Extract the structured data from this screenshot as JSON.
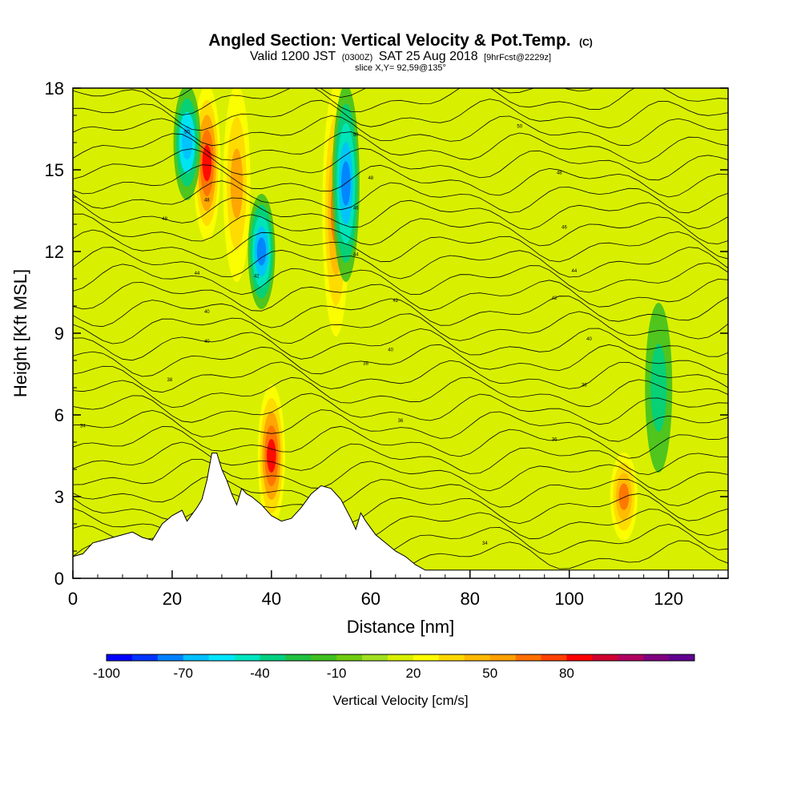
{
  "header": {
    "title_main": "Angled Section: Vertical Velocity & Pot.Temp.",
    "title_mark": "(C)",
    "valid_prefix": "Valid 1200 JST",
    "valid_utc": "(0300Z)",
    "valid_date": "SAT 25 Aug 2018",
    "valid_fcst": "[9hrFcst@2229z]",
    "slice": "slice X,Y= 92,59@135°"
  },
  "chart_data": {
    "type": "heatmap",
    "xlabel": "Distance [nm]",
    "ylabel": "Height [Kft MSL]",
    "xlim": [
      0,
      132
    ],
    "ylim": [
      0,
      18
    ],
    "xticks": [
      0,
      20,
      40,
      60,
      80,
      100,
      120
    ],
    "yticks": [
      0,
      3,
      6,
      9,
      12,
      15,
      18
    ],
    "field": "Vertical Velocity",
    "contour_field": "Pot.Temp.",
    "updraft_bands": [
      {
        "x": 27,
        "y_from": 12.5,
        "y_to": 18,
        "peak_value": 85
      },
      {
        "x": 33,
        "y_from": 11,
        "y_to": 18,
        "peak_value": 50
      },
      {
        "x": 40,
        "y_from": 2,
        "y_to": 7,
        "peak_value": 85
      },
      {
        "x": 53,
        "y_from": 9,
        "y_to": 18,
        "peak_value": 60
      },
      {
        "x": 111,
        "y_from": 1.5,
        "y_to": 4.5,
        "peak_value": 60
      }
    ],
    "downdraft_bands": [
      {
        "x": 23,
        "y_from": 14,
        "y_to": 18,
        "peak_value": -70
      },
      {
        "x": 38,
        "y_from": 10,
        "y_to": 14,
        "peak_value": -75
      },
      {
        "x": 55,
        "y_from": 11,
        "y_to": 18,
        "peak_value": -75
      },
      {
        "x": 118,
        "y_from": 4,
        "y_to": 10,
        "peak_value": -35
      }
    ],
    "terrain": [
      [
        0,
        0.8
      ],
      [
        2,
        0.9
      ],
      [
        4,
        1.3
      ],
      [
        6,
        1.4
      ],
      [
        8,
        1.5
      ],
      [
        10,
        1.6
      ],
      [
        12,
        1.7
      ],
      [
        14,
        1.5
      ],
      [
        16,
        1.4
      ],
      [
        18,
        2.0
      ],
      [
        20,
        2.3
      ],
      [
        22,
        2.5
      ],
      [
        23,
        2.1
      ],
      [
        25,
        2.6
      ],
      [
        26,
        2.9
      ],
      [
        27,
        3.6
      ],
      [
        28,
        4.6
      ],
      [
        29,
        4.6
      ],
      [
        30,
        4.0
      ],
      [
        31,
        3.6
      ],
      [
        32,
        3.1
      ],
      [
        33,
        2.7
      ],
      [
        34,
        3.3
      ],
      [
        35,
        3.1
      ],
      [
        36,
        3.0
      ],
      [
        38,
        2.7
      ],
      [
        40,
        2.3
      ],
      [
        42,
        2.1
      ],
      [
        44,
        2.2
      ],
      [
        46,
        2.6
      ],
      [
        48,
        3.1
      ],
      [
        50,
        3.4
      ],
      [
        52,
        3.3
      ],
      [
        54,
        2.9
      ],
      [
        56,
        2.2
      ],
      [
        57,
        1.8
      ],
      [
        58,
        2.4
      ],
      [
        59,
        2.1
      ],
      [
        61,
        1.6
      ],
      [
        63,
        1.3
      ],
      [
        65,
        1.0
      ],
      [
        67,
        0.8
      ],
      [
        69,
        0.5
      ],
      [
        71,
        0.3
      ],
      [
        132,
        0.3
      ]
    ],
    "contour_labels": [
      {
        "text": "50",
        "x": 23,
        "y": 16.4
      },
      {
        "text": "48",
        "x": 27,
        "y": 13.9
      },
      {
        "text": "48",
        "x": 18.5,
        "y": 13.2
      },
      {
        "text": "44",
        "x": 25,
        "y": 11.2
      },
      {
        "text": "42",
        "x": 37,
        "y": 11.1
      },
      {
        "text": "40",
        "x": 27,
        "y": 9.8
      },
      {
        "text": "40",
        "x": 27,
        "y": 8.7
      },
      {
        "text": "38",
        "x": 19.5,
        "y": 7.3
      },
      {
        "text": "34",
        "x": 2,
        "y": 5.6
      },
      {
        "text": "50",
        "x": 57,
        "y": 16.3
      },
      {
        "text": "48",
        "x": 60,
        "y": 14.7
      },
      {
        "text": "46",
        "x": 57,
        "y": 13.6
      },
      {
        "text": "44",
        "x": 57,
        "y": 11.9
      },
      {
        "text": "42",
        "x": 65,
        "y": 10.2
      },
      {
        "text": "40",
        "x": 64,
        "y": 8.4
      },
      {
        "text": "38",
        "x": 59,
        "y": 7.9
      },
      {
        "text": "36",
        "x": 66,
        "y": 5.8
      },
      {
        "text": "50",
        "x": 90,
        "y": 16.6
      },
      {
        "text": "48",
        "x": 98,
        "y": 14.9
      },
      {
        "text": "46",
        "x": 99,
        "y": 12.9
      },
      {
        "text": "44",
        "x": 101,
        "y": 11.3
      },
      {
        "text": "42",
        "x": 97,
        "y": 10.3
      },
      {
        "text": "40",
        "x": 104,
        "y": 8.8
      },
      {
        "text": "38",
        "x": 103,
        "y": 7.1
      },
      {
        "text": "36",
        "x": 97,
        "y": 5.1
      },
      {
        "text": "34",
        "x": 83,
        "y": 1.3
      }
    ]
  },
  "colorbar": {
    "title": "Vertical Velocity [cm/s]",
    "min": -100,
    "step": 10,
    "colors": [
      "#0000ff",
      "#0033ff",
      "#0080ff",
      "#00c0ff",
      "#00e6ff",
      "#00e6c0",
      "#00d080",
      "#20c040",
      "#40c020",
      "#70cc10",
      "#a0e020",
      "#d8f000",
      "#ffff00",
      "#ffd800",
      "#ffb800",
      "#ffa000",
      "#ff7000",
      "#ff4000",
      "#ff0000",
      "#d00030",
      "#b00060",
      "#800080",
      "#600090"
    ],
    "tick_labels": [
      "-100",
      "-70",
      "-40",
      "-10",
      "20",
      "50",
      "80"
    ],
    "tick_values": [
      -100,
      -70,
      -40,
      -10,
      20,
      50,
      80
    ]
  }
}
